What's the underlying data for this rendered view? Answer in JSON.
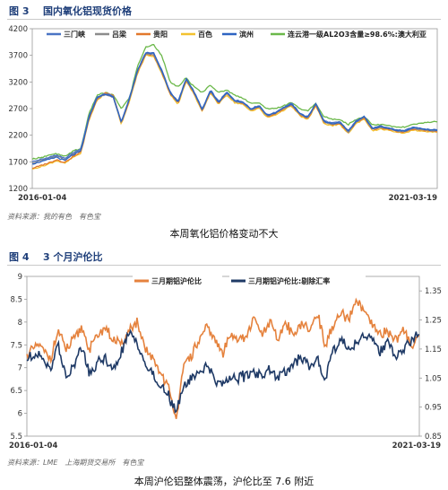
{
  "figure1": {
    "number": "图 3",
    "title": "国内氧化铝现货价格",
    "source": "资料来源：我的有色　有色宝",
    "caption": "本周氧化铝价格变动不大"
  },
  "figure2": {
    "number": "图 4",
    "title": "3 个月沪伦比",
    "source": "资料来源：LME　上海期货交易所　有色宝",
    "caption": "本周沪伦铝整体震荡，沪伦比至 7.6 附近"
  },
  "colors": {
    "sanmenxia": "#4a74c4",
    "lvliang": "#8c8c8c",
    "guiyang": "#e2782c",
    "baise": "#f3c12f",
    "binzhou": "#2e64c2",
    "lianyungang": "#6bb84a",
    "ratio": "#e5823d",
    "ratio_ex": "#1f3a66",
    "header": "#1f3f7a"
  },
  "chart_data": [
    {
      "type": "line",
      "x_start": "2016-01-04",
      "x_end": "2021-03-19",
      "ylim": [
        1200,
        4200
      ],
      "yticks": [
        1200,
        1700,
        2200,
        2700,
        3200,
        3700,
        4200
      ],
      "xtick_labels": [
        "2016-01-04",
        "2021-03-19"
      ],
      "legend_position": "top",
      "x_sample_pct": [
        0,
        3,
        6,
        8,
        10,
        12,
        14,
        16,
        18,
        20,
        22,
        24,
        26,
        28,
        30,
        32,
        34,
        36,
        38,
        40,
        42,
        44,
        46,
        48,
        50,
        52,
        54,
        56,
        58,
        60,
        62,
        64,
        66,
        68,
        70,
        72,
        74,
        76,
        78,
        80,
        82,
        84,
        86,
        88,
        90,
        92,
        94,
        96,
        98,
        100
      ],
      "series": [
        {
          "name": "三门峡",
          "color_key": "sanmenxia",
          "values": [
            1700,
            1760,
            1830,
            1760,
            1870,
            1940,
            2550,
            2920,
            2980,
            2930,
            2450,
            2900,
            3420,
            3760,
            3740,
            3420,
            3020,
            2830,
            3270,
            3010,
            2690,
            3050,
            2830,
            3010,
            2860,
            2830,
            2700,
            2760,
            2580,
            2630,
            2720,
            2800,
            2620,
            2540,
            2800,
            2470,
            2430,
            2450,
            2280,
            2470,
            2560,
            2330,
            2370,
            2340,
            2300,
            2290,
            2350,
            2330,
            2310,
            2300
          ]
        },
        {
          "name": "吕梁",
          "color_key": "lvliang",
          "values": [
            1680,
            1740,
            1810,
            1740,
            1850,
            1920,
            2530,
            2900,
            2960,
            2910,
            2430,
            2880,
            3400,
            3730,
            3710,
            3390,
            3000,
            2810,
            3250,
            2990,
            2670,
            3030,
            2810,
            2990,
            2840,
            2810,
            2680,
            2740,
            2560,
            2610,
            2700,
            2780,
            2600,
            2520,
            2780,
            2450,
            2410,
            2430,
            2260,
            2450,
            2540,
            2310,
            2350,
            2320,
            2280,
            2270,
            2330,
            2310,
            2290,
            2280
          ]
        },
        {
          "name": "贵阳",
          "color_key": "guiyang",
          "values": [
            1580,
            1650,
            1740,
            1690,
            1800,
            1880,
            2500,
            2880,
            3000,
            2950,
            2420,
            2860,
            3380,
            3720,
            3700,
            3380,
            2990,
            2800,
            3240,
            2980,
            2660,
            3020,
            2800,
            2980,
            2830,
            2800,
            2670,
            2730,
            2550,
            2600,
            2690,
            2770,
            2590,
            2510,
            2770,
            2440,
            2400,
            2420,
            2250,
            2440,
            2530,
            2300,
            2340,
            2310,
            2270,
            2260,
            2320,
            2300,
            2280,
            2270
          ]
        },
        {
          "name": "百色",
          "color_key": "baise",
          "values": [
            1560,
            1630,
            1720,
            1670,
            1780,
            1860,
            2480,
            2860,
            2980,
            2930,
            2400,
            2840,
            3360,
            3700,
            3680,
            3360,
            2970,
            2780,
            3220,
            2960,
            2640,
            3000,
            2780,
            2960,
            2810,
            2780,
            2650,
            2710,
            2530,
            2580,
            2670,
            2750,
            2570,
            2490,
            2750,
            2420,
            2380,
            2400,
            2230,
            2420,
            2510,
            2280,
            2320,
            2290,
            2250,
            2240,
            2300,
            2280,
            2260,
            2250
          ]
        },
        {
          "name": "滨州",
          "color_key": "binzhou",
          "values": [
            1660,
            1720,
            1790,
            1720,
            1830,
            1900,
            2520,
            2910,
            2970,
            2920,
            2440,
            2890,
            3410,
            3750,
            3730,
            3410,
            3010,
            2820,
            3260,
            3000,
            2680,
            3040,
            2820,
            3000,
            2850,
            2820,
            2690,
            2750,
            2570,
            2620,
            2710,
            2790,
            2610,
            2530,
            2790,
            2460,
            2420,
            2440,
            2270,
            2460,
            2550,
            2320,
            2360,
            2330,
            2290,
            2280,
            2340,
            2320,
            2300,
            2290
          ]
        },
        {
          "name": "连云港一级AL2O3含量≥98.6%:澳大利亚",
          "color_key": "lianyungang",
          "values": [
            1750,
            1800,
            1850,
            1800,
            1900,
            1950,
            2600,
            2950,
            3000,
            2950,
            2700,
            2900,
            3500,
            3850,
            3900,
            3700,
            3200,
            3100,
            3280,
            3100,
            3000,
            3150,
            3000,
            3050,
            2950,
            2900,
            2800,
            2800,
            2700,
            2700,
            2750,
            2820,
            2700,
            2650,
            2800,
            2550,
            2500,
            2500,
            2400,
            2500,
            2550,
            2400,
            2400,
            2380,
            2350,
            2350,
            2400,
            2420,
            2450,
            2450
          ]
        }
      ]
    },
    {
      "type": "line",
      "x_start": "2016-01-04",
      "x_end": "2021-03-19",
      "ylim_left": [
        5.5,
        9
      ],
      "yticks_left": [
        5.5,
        6,
        6.5,
        7,
        7.5,
        8,
        8.5,
        9
      ],
      "ylim_right": [
        0.85,
        1.4
      ],
      "yticks_right": [
        0.85,
        0.95,
        1.05,
        1.15,
        1.25,
        1.35
      ],
      "xtick_labels": [
        "2016-01-04",
        "2021-03-19"
      ],
      "legend_position": "top",
      "x_sample_pct": [
        0,
        3,
        6,
        8,
        10,
        12,
        14,
        16,
        18,
        20,
        22,
        24,
        26,
        28,
        30,
        32,
        34,
        36,
        38,
        40,
        42,
        44,
        46,
        48,
        50,
        52,
        54,
        56,
        58,
        60,
        62,
        64,
        66,
        68,
        70,
        72,
        74,
        76,
        78,
        80,
        82,
        84,
        86,
        88,
        90,
        92,
        94,
        96,
        98,
        100
      ],
      "series": [
        {
          "name": "三月期铝沪伦比",
          "axis": "left",
          "color_key": "ratio",
          "values": [
            7.3,
            7.5,
            7.2,
            7.8,
            7.4,
            7.6,
            7.9,
            7.4,
            7.7,
            7.9,
            7.6,
            7.5,
            7.8,
            8.0,
            7.4,
            7.2,
            6.9,
            6.6,
            5.9,
            7.0,
            7.3,
            7.6,
            7.9,
            7.6,
            7.3,
            7.8,
            7.6,
            7.7,
            8.1,
            7.7,
            8.0,
            7.6,
            8.0,
            7.7,
            8.0,
            7.8,
            8.2,
            7.5,
            7.9,
            8.2,
            8.0,
            8.5,
            8.2,
            7.9,
            7.7,
            7.8,
            7.6,
            7.8,
            7.5,
            7.7
          ]
        },
        {
          "name": "三月期铝沪伦比:剔除汇率",
          "axis": "right",
          "color_key": "ratio_ex",
          "values": [
            1.11,
            1.14,
            1.08,
            1.17,
            1.05,
            1.09,
            1.16,
            1.06,
            1.1,
            1.12,
            1.07,
            1.14,
            1.2,
            1.18,
            1.1,
            1.06,
            1.02,
            0.99,
            0.94,
            1.02,
            1.05,
            1.07,
            1.1,
            1.04,
            1.03,
            1.06,
            1.05,
            1.06,
            1.07,
            1.06,
            1.08,
            1.05,
            1.07,
            1.1,
            1.12,
            1.09,
            1.11,
            1.05,
            1.15,
            1.18,
            1.15,
            1.17,
            1.2,
            1.18,
            1.14,
            1.17,
            1.12,
            1.15,
            1.18,
            1.2
          ]
        }
      ]
    }
  ]
}
